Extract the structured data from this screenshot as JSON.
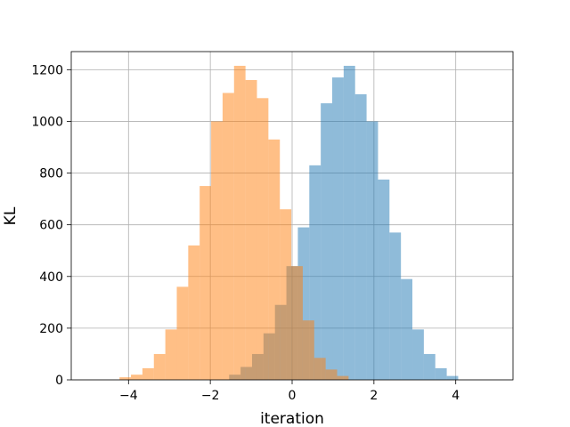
{
  "chart_data": {
    "type": "bar",
    "subtype": "overlapping-histogram",
    "title": "",
    "xlabel": "iteration",
    "ylabel": "KL",
    "xlim": [
      -5.4,
      5.4
    ],
    "ylim": [
      0,
      1270
    ],
    "grid": true,
    "x_ticks": [
      -4,
      -2,
      0,
      2,
      4
    ],
    "x_tick_labels": [
      "−4",
      "−2",
      "0",
      "2",
      "4"
    ],
    "y_ticks": [
      0,
      200,
      400,
      600,
      800,
      1000,
      1200
    ],
    "y_tick_labels": [
      "0",
      "200",
      "400",
      "600",
      "800",
      "1000",
      "1200"
    ],
    "series": [
      {
        "color": "#1f77b4",
        "alpha": 0.5,
        "bin_width": 0.28,
        "bin_starts": [
          -1.54,
          -1.26,
          -0.98,
          -0.7,
          -0.42,
          -0.14,
          0.14,
          0.42,
          0.7,
          0.98,
          1.26,
          1.54,
          1.82,
          2.1,
          2.38,
          2.66,
          2.94,
          3.22,
          3.5,
          3.78
        ],
        "values": [
          20,
          50,
          100,
          180,
          290,
          440,
          590,
          830,
          1070,
          1170,
          1215,
          1105,
          1000,
          775,
          570,
          390,
          195,
          100,
          45,
          15
        ]
      },
      {
        "color": "#ff7f0e",
        "alpha": 0.5,
        "bin_width": 0.28,
        "bin_starts": [
          -4.22,
          -3.94,
          -3.66,
          -3.38,
          -3.1,
          -2.82,
          -2.54,
          -2.26,
          -1.98,
          -1.7,
          -1.42,
          -1.14,
          -0.86,
          -0.58,
          -0.3,
          -0.02,
          0.26,
          0.54,
          0.82,
          1.1
        ],
        "values": [
          10,
          20,
          45,
          100,
          195,
          360,
          520,
          750,
          1000,
          1110,
          1215,
          1160,
          1090,
          930,
          660,
          440,
          230,
          85,
          40,
          15
        ]
      }
    ]
  }
}
